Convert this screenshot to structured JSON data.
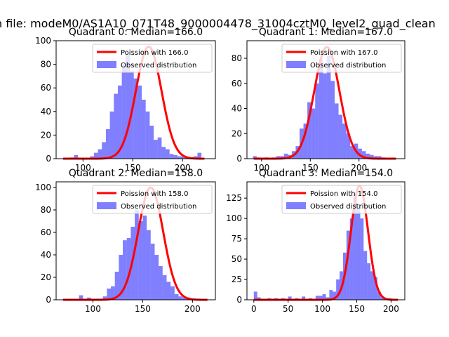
{
  "figure": {
    "suptitle": "n file: modeM0/AS1A10_071T48_9000004478_31004cztM0_level2_quad_clean"
  },
  "colors": {
    "hist": "#0000ff",
    "hist_opacity": 0.5,
    "curve": "#ff0000",
    "axis": "#000000",
    "background": "#ffffff"
  },
  "chart_data": [
    {
      "type": "bar",
      "title": "Quadrant 0: Median=166.0",
      "legend": {
        "curve_label": "Poission with 166.0",
        "hist_label": "Observed distribution",
        "placement": "top-right"
      },
      "xlim": [
        73,
        233
      ],
      "ylim": [
        0,
        100
      ],
      "xticks": [
        100,
        150,
        200
      ],
      "yticks": [
        0,
        20,
        40,
        60,
        80,
        100
      ],
      "bin_start": 79,
      "bin_width": 4,
      "values": [
        0,
        0,
        1,
        3,
        0,
        0,
        0,
        2,
        5,
        8,
        14,
        25,
        40,
        55,
        62,
        80,
        90,
        74,
        68,
        62,
        50,
        40,
        28,
        16,
        18,
        10,
        8,
        4,
        3,
        2,
        2,
        1,
        1,
        2,
        5,
        0,
        0,
        0,
        0,
        0,
        0
      ],
      "curve": {
        "lambda": 166.0,
        "peak": 95,
        "x_range": [
          80,
          222
        ]
      }
    },
    {
      "type": "bar",
      "title": "Quadrant 1: Median=167.0",
      "legend": {
        "curve_label": "Poission with 167.0",
        "hist_label": "Observed distribution",
        "placement": "top-right"
      },
      "xlim": [
        85,
        247
      ],
      "ylim": [
        0,
        94
      ],
      "xticks": [
        100,
        150,
        200
      ],
      "yticks": [
        0,
        20,
        40,
        60,
        80
      ],
      "bin_start": 91,
      "bin_width": 4,
      "values": [
        2,
        1,
        0,
        1,
        0,
        1,
        2,
        2,
        4,
        3,
        6,
        10,
        24,
        28,
        45,
        40,
        60,
        79,
        68,
        82,
        62,
        44,
        35,
        28,
        20,
        10,
        12,
        8,
        6,
        4,
        3,
        2,
        2,
        1,
        0,
        0
      ],
      "curve": {
        "lambda": 167.0,
        "peak": 89,
        "x_range": [
          92,
          238
        ]
      }
    },
    {
      "type": "bar",
      "title": "Quadrant 2: Median=158.0",
      "legend": {
        "curve_label": "Poission with 158.0",
        "hist_label": "Observed distribution",
        "placement": "top-right"
      },
      "xlim": [
        63,
        223
      ],
      "ylim": [
        0,
        105
      ],
      "xticks": [
        100,
        150,
        200
      ],
      "yticks": [
        0,
        20,
        40,
        60,
        80,
        100
      ],
      "bin_start": 70,
      "bin_width": 4,
      "values": [
        0,
        0,
        0,
        0,
        4,
        1,
        2,
        1,
        1,
        1,
        3,
        10,
        12,
        25,
        40,
        53,
        55,
        65,
        80,
        70,
        75,
        62,
        50,
        40,
        30,
        22,
        16,
        12,
        5,
        3,
        2,
        2,
        1,
        0,
        0,
        0,
        0
      ],
      "curve": {
        "lambda": 158.0,
        "peak": 100,
        "x_range": [
          70,
          215
        ]
      }
    },
    {
      "type": "bar",
      "title": "Quadrant 3: Median=154.0",
      "legend": {
        "curve_label": "Poission with 154.0",
        "hist_label": "Observed distribution",
        "placement": "top-right"
      },
      "xlim": [
        -10,
        220
      ],
      "ylim": [
        0,
        145
      ],
      "xticks": [
        0,
        50,
        100,
        150,
        200
      ],
      "yticks": [
        0,
        25,
        50,
        75,
        100,
        125
      ],
      "bin_start": 0,
      "bin_width": 5,
      "values": [
        10,
        3,
        1,
        0,
        2,
        0,
        2,
        0,
        2,
        0,
        4,
        0,
        2,
        0,
        4,
        1,
        2,
        0,
        5,
        5,
        7,
        3,
        12,
        10,
        25,
        35,
        58,
        85,
        100,
        130,
        115,
        100,
        60,
        45,
        35,
        28,
        10,
        3,
        2,
        2,
        1
      ],
      "curve": {
        "lambda": 154.0,
        "peak": 140,
        "x_range": [
          0,
          210
        ]
      }
    }
  ]
}
